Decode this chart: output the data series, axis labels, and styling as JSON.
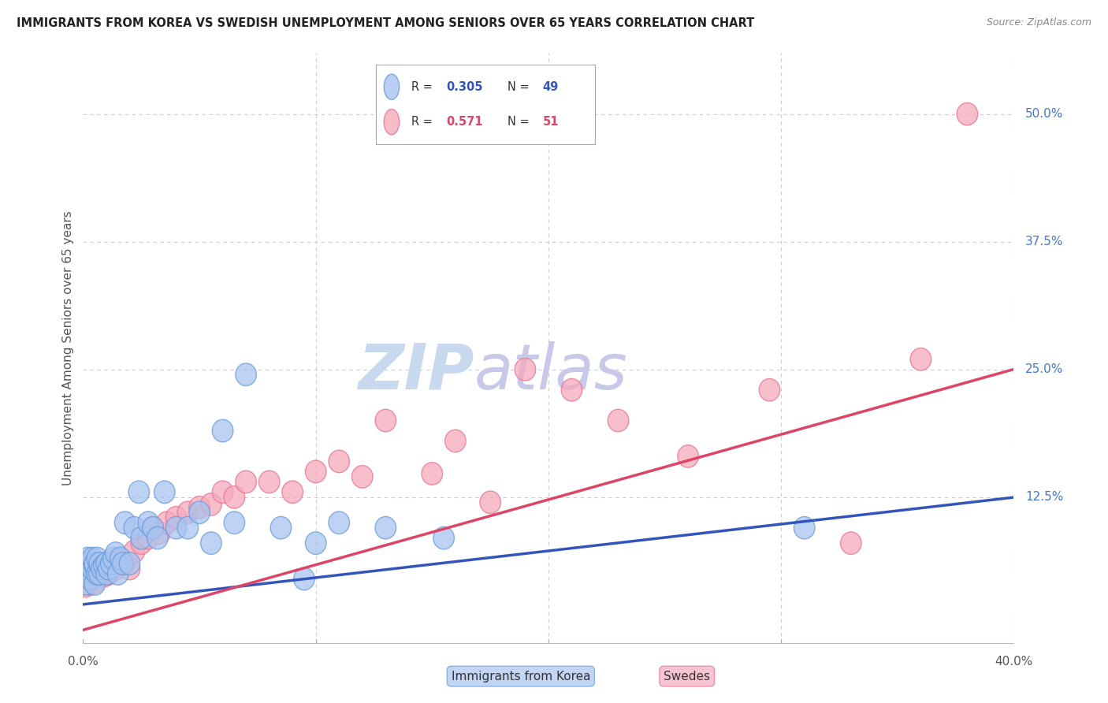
{
  "title": "IMMIGRANTS FROM KOREA VS SWEDISH UNEMPLOYMENT AMONG SENIORS OVER 65 YEARS CORRELATION CHART",
  "source": "Source: ZipAtlas.com",
  "ylabel": "Unemployment Among Seniors over 65 years",
  "xlim": [
    0.0,
    0.4
  ],
  "ylim": [
    -0.018,
    0.56
  ],
  "y_ticks": [
    0.0,
    0.125,
    0.25,
    0.375,
    0.5
  ],
  "right_tick_labels": [
    "",
    "12.5%",
    "25.0%",
    "37.5%",
    "50.0%"
  ],
  "x_tick_positions": [
    0.0,
    0.1,
    0.2,
    0.3,
    0.4
  ],
  "korea_R": 0.305,
  "korea_N": 49,
  "swedes_R": 0.571,
  "swedes_N": 51,
  "korea_fill": "#A8C4F0",
  "korea_edge": "#6699DD",
  "swedes_fill": "#F5AABC",
  "swedes_edge": "#E87090",
  "korea_line_color": "#3355BB",
  "swedes_line_color": "#DD4466",
  "watermark_zip": "ZIP",
  "watermark_atlas": "atlas",
  "watermark_color_zip": "#C8D8EE",
  "watermark_color_atlas": "#C8C8E8",
  "background_color": "#FFFFFF",
  "grid_color": "#CCCCCC",
  "title_color": "#222222",
  "source_color": "#888888",
  "right_label_color": "#4477CC",
  "bottom_label_color": "#555555",
  "korea_line_intercept": 0.02,
  "korea_line_slope": 0.262,
  "swedes_line_intercept": -0.005,
  "swedes_line_slope": 0.638,
  "korea_scatter_x": [
    0.001,
    0.001,
    0.002,
    0.002,
    0.003,
    0.003,
    0.004,
    0.004,
    0.005,
    0.005,
    0.005,
    0.006,
    0.006,
    0.007,
    0.007,
    0.008,
    0.009,
    0.01,
    0.01,
    0.011,
    0.012,
    0.013,
    0.014,
    0.015,
    0.016,
    0.017,
    0.018,
    0.02,
    0.022,
    0.024,
    0.025,
    0.028,
    0.03,
    0.032,
    0.035,
    0.04,
    0.045,
    0.05,
    0.055,
    0.06,
    0.065,
    0.07,
    0.085,
    0.095,
    0.1,
    0.11,
    0.13,
    0.155,
    0.31
  ],
  "korea_scatter_y": [
    0.04,
    0.06,
    0.055,
    0.065,
    0.045,
    0.06,
    0.055,
    0.065,
    0.04,
    0.058,
    0.06,
    0.05,
    0.065,
    0.05,
    0.06,
    0.055,
    0.058,
    0.05,
    0.06,
    0.055,
    0.06,
    0.065,
    0.07,
    0.05,
    0.065,
    0.06,
    0.1,
    0.06,
    0.095,
    0.13,
    0.085,
    0.1,
    0.095,
    0.085,
    0.13,
    0.095,
    0.095,
    0.11,
    0.08,
    0.19,
    0.1,
    0.245,
    0.095,
    0.045,
    0.08,
    0.1,
    0.095,
    0.085,
    0.095
  ],
  "swedes_scatter_x": [
    0.001,
    0.001,
    0.002,
    0.002,
    0.003,
    0.003,
    0.004,
    0.004,
    0.005,
    0.005,
    0.006,
    0.007,
    0.008,
    0.009,
    0.01,
    0.011,
    0.012,
    0.014,
    0.016,
    0.018,
    0.02,
    0.022,
    0.025,
    0.028,
    0.03,
    0.033,
    0.036,
    0.04,
    0.045,
    0.05,
    0.055,
    0.06,
    0.065,
    0.07,
    0.08,
    0.09,
    0.1,
    0.11,
    0.12,
    0.13,
    0.15,
    0.16,
    0.175,
    0.19,
    0.21,
    0.23,
    0.26,
    0.295,
    0.33,
    0.36,
    0.38
  ],
  "swedes_scatter_y": [
    0.038,
    0.055,
    0.048,
    0.058,
    0.04,
    0.052,
    0.048,
    0.06,
    0.042,
    0.055,
    0.055,
    0.05,
    0.06,
    0.048,
    0.055,
    0.05,
    0.058,
    0.055,
    0.062,
    0.06,
    0.055,
    0.072,
    0.08,
    0.085,
    0.095,
    0.09,
    0.1,
    0.105,
    0.11,
    0.115,
    0.118,
    0.13,
    0.125,
    0.14,
    0.14,
    0.13,
    0.15,
    0.16,
    0.145,
    0.2,
    0.148,
    0.18,
    0.12,
    0.25,
    0.23,
    0.2,
    0.165,
    0.23,
    0.08,
    0.26,
    0.5
  ]
}
